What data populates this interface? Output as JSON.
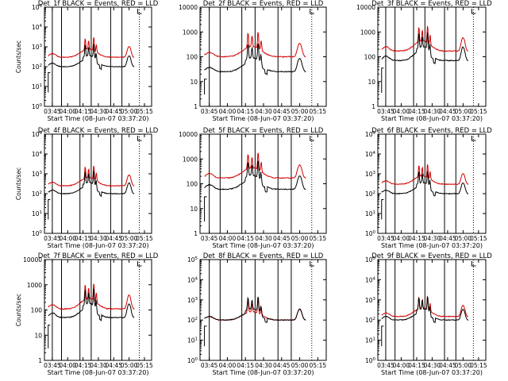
{
  "colors": {
    "events": "#000000",
    "lld": "#d40000",
    "background": "#ffffff",
    "axis": "#000000"
  },
  "time_ticks": [
    "03:45",
    "04:00",
    "04:15",
    "04:30",
    "04:45",
    "05:00",
    "05:15"
  ],
  "xlabel": "Start Time (08-Jun-07 03:37:20)",
  "ylabel": "Counts/sec",
  "chart_data": [
    {
      "type": "line",
      "title": "Det_1f BLACK = Events, RED = LLD",
      "yscale": "log",
      "ylim": [
        1,
        100000
      ],
      "ytick_format": "exp",
      "events_level": 100,
      "lld_level": 300,
      "show_ylabel": true
    },
    {
      "type": "line",
      "title": "Det_2f BLACK = Events, RED = LLD",
      "yscale": "log",
      "ylim": [
        1,
        10000
      ],
      "ytick_format": "plain",
      "events_level": 25,
      "lld_level": 100,
      "show_ylabel": false
    },
    {
      "type": "line",
      "title": "Det_3f BLACK = Events, RED = LLD",
      "yscale": "log",
      "ylim": [
        1,
        10000
      ],
      "ytick_format": "plain",
      "events_level": 70,
      "lld_level": 170,
      "show_ylabel": false
    },
    {
      "type": "line",
      "title": "Det_4f BLACK = Events, RED = LLD",
      "yscale": "log",
      "ylim": [
        1,
        100000
      ],
      "ytick_format": "exp",
      "events_level": 100,
      "lld_level": 250,
      "show_ylabel": true
    },
    {
      "type": "line",
      "title": "Det_5f BLACK = Events, RED = LLD",
      "yscale": "log",
      "ylim": [
        1,
        10000
      ],
      "ytick_format": "plain",
      "events_level": 60,
      "lld_level": 170,
      "show_ylabel": false
    },
    {
      "type": "line",
      "title": "Det_6f BLACK = Events, RED = LLD",
      "yscale": "log",
      "ylim": [
        1,
        100000
      ],
      "ytick_format": "exp",
      "events_level": 100,
      "lld_level": 300,
      "show_ylabel": false
    },
    {
      "type": "line",
      "title": "Det_7f BLACK = Events, RED = LLD",
      "yscale": "log",
      "ylim": [
        1,
        10000
      ],
      "ytick_format": "plain",
      "events_level": 50,
      "lld_level": 110,
      "show_ylabel": true
    },
    {
      "type": "line",
      "title": "Det_8f BLACK = Events, RED = LLD",
      "yscale": "log",
      "ylim": [
        1,
        100000
      ],
      "ytick_format": "exp",
      "events_level": 100,
      "lld_level": 100,
      "show_ylabel": false
    },
    {
      "type": "line",
      "title": "Det_9f BLACK = Events, RED = LLD",
      "yscale": "log",
      "ylim": [
        1,
        100000
      ],
      "ytick_format": "exp",
      "events_level": 100,
      "lld_level": 150,
      "show_ylabel": false
    }
  ]
}
